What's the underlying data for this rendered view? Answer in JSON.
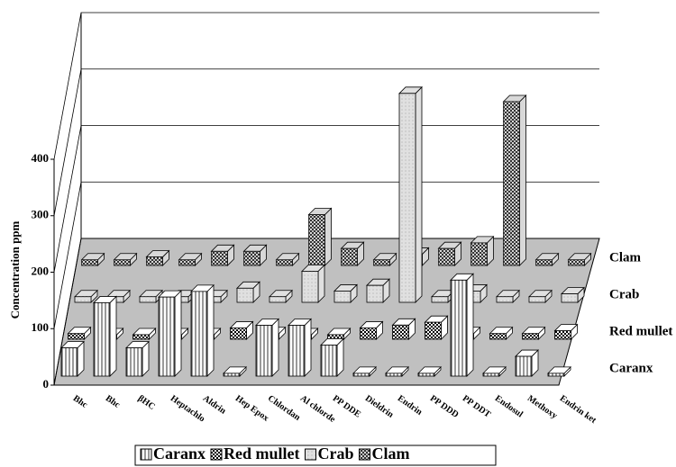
{
  "chart_data": {
    "type": "bar3d",
    "y_label": "Concentration ppm",
    "categories": [
      "Bhc",
      "Bhc",
      "βHC",
      "Heptachlo",
      "Aldrin",
      "Hep Epox",
      "Chlordan",
      "Al chlorde",
      "PP DDE",
      "Dieldrin",
      "Endrin",
      "PP DDD",
      "PP DDT",
      "Endosul",
      "Methoxy",
      "Endrin ket"
    ],
    "series": [
      {
        "name": "Caranx",
        "color": "#ffffff",
        "values": [
          50,
          130,
          50,
          140,
          150,
          5,
          90,
          90,
          55,
          5,
          5,
          5,
          170,
          5,
          35,
          5
        ]
      },
      {
        "name": "Red mullet",
        "color": "#ffffff",
        "values": [
          10,
          8,
          8,
          8,
          8,
          20,
          10,
          8,
          8,
          20,
          25,
          30,
          10,
          10,
          10,
          15
        ]
      },
      {
        "name": "Crab",
        "color": "#e0e0e0",
        "values": [
          10,
          10,
          10,
          10,
          10,
          25,
          10,
          55,
          20,
          30,
          370,
          10,
          20,
          10,
          10,
          15
        ]
      },
      {
        "name": "Clam",
        "color": "#d8d8d8",
        "values": [
          10,
          10,
          15,
          10,
          25,
          25,
          10,
          90,
          30,
          10,
          20,
          30,
          40,
          290,
          10,
          10
        ]
      }
    ],
    "ylim": [
      0,
      400
    ],
    "yticks": [
      0,
      100,
      200,
      300,
      400
    ],
    "grid": true
  }
}
